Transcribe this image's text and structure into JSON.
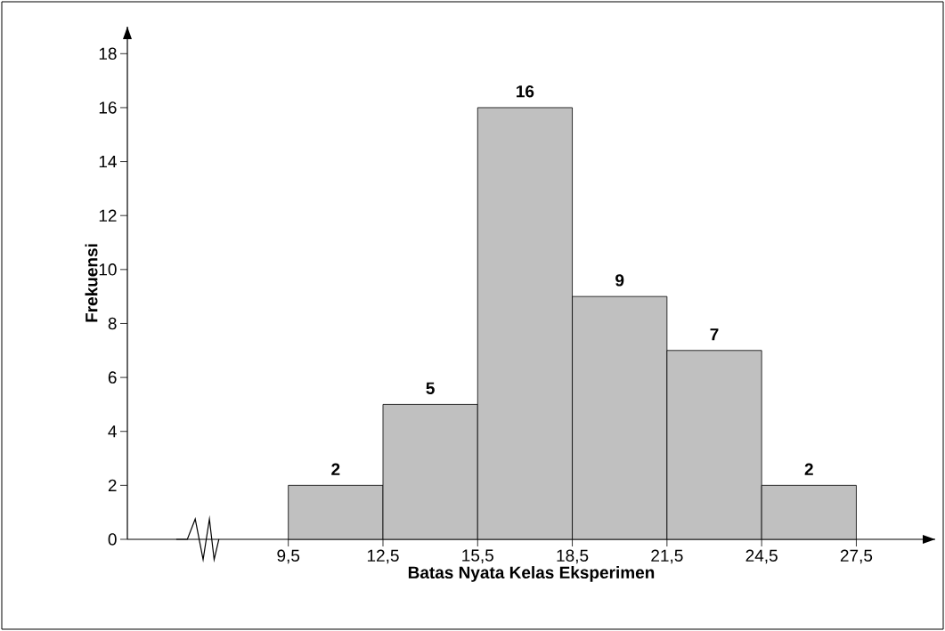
{
  "chart_data": {
    "type": "histogram",
    "xlabel": "Batas Nyata Kelas Eksperimen",
    "ylabel": "Frekuensi",
    "bins": [
      9.5,
      12.5,
      15.5,
      18.5,
      21.5,
      24.5,
      27.5
    ],
    "values": [
      2,
      5,
      16,
      9,
      7,
      2
    ],
    "color": "#c0c0c0",
    "data_labels": true,
    "xlim": [
      4.4,
      30
    ],
    "ylim": [
      0,
      19
    ],
    "xticks": [
      {
        "value": 9.5,
        "label": "9,5"
      },
      {
        "value": 12.5,
        "label": "12,5"
      },
      {
        "value": 15.5,
        "label": "15,5"
      },
      {
        "value": 18.5,
        "label": "18,5"
      },
      {
        "value": 21.5,
        "label": "21,5"
      },
      {
        "value": 24.5,
        "label": "24,5"
      },
      {
        "value": 27.5,
        "label": "27,5"
      }
    ],
    "yticks": [
      0,
      2,
      4,
      6,
      8,
      10,
      12,
      14,
      16,
      18
    ],
    "grid": false
  }
}
